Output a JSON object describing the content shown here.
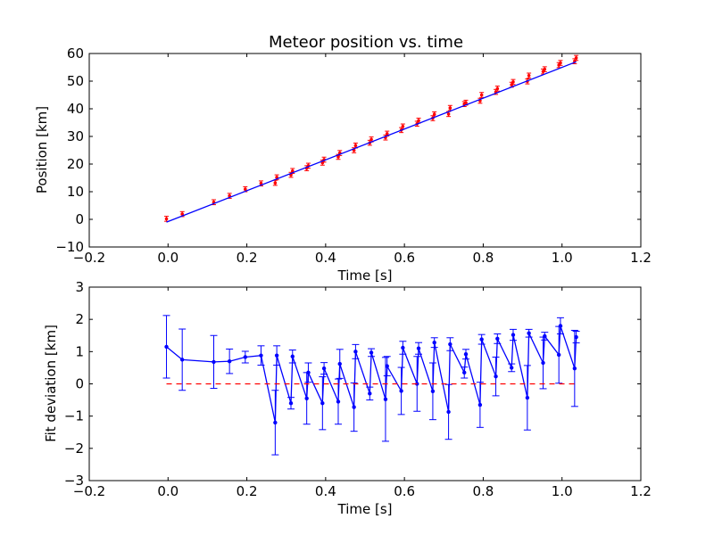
{
  "colors": {
    "measured": "#ff0000",
    "fit": "#0000ff",
    "deviation": "#0000ff",
    "zero_line": "#ff0000"
  },
  "chart_data": [
    {
      "type": "scatter",
      "title": "Meteor position vs. time",
      "xlabel": "Time [s]",
      "ylabel": "Position [km]",
      "xlim": [
        -0.2,
        1.2
      ],
      "ylim": [
        -10,
        60
      ],
      "xticks": [
        "−0.2",
        "0.0",
        "0.2",
        "0.4",
        "0.6",
        "0.8",
        "1.0",
        "1.2"
      ],
      "yticks": [
        "−10",
        "0",
        "10",
        "20",
        "30",
        "40",
        "50",
        "60"
      ],
      "series": [
        {
          "marker": "point-with-errorbar",
          "x": [
            -0.004,
            0.036,
            0.116,
            0.156,
            0.196,
            0.236,
            0.272,
            0.276,
            0.312,
            0.316,
            0.352,
            0.356,
            0.392,
            0.396,
            0.432,
            0.436,
            0.472,
            0.476,
            0.512,
            0.516,
            0.552,
            0.556,
            0.592,
            0.596,
            0.632,
            0.636,
            0.672,
            0.676,
            0.712,
            0.716,
            0.752,
            0.756,
            0.792,
            0.796,
            0.832,
            0.836,
            0.872,
            0.876,
            0.912,
            0.916,
            0.952,
            0.956,
            0.992,
            0.996,
            1.032,
            1.036
          ],
          "y": [
            0.2,
            1.9,
            6.2,
            8.5,
            10.9,
            13.0,
            13.2,
            15.2,
            16.1,
            17.5,
            18.5,
            19.4,
            20.5,
            21.6,
            22.6,
            24.0,
            25.0,
            26.7,
            27.7,
            28.9,
            29.6,
            31.0,
            32.3,
            33.6,
            34.6,
            35.7,
            36.6,
            38.0,
            38.1,
            40.3,
            41.7,
            42.2,
            42.9,
            45.0,
            46.1,
            47.3,
            48.7,
            49.7,
            49.9,
            52.0,
            53.5,
            54.3,
            55.8,
            56.6,
            57.2,
            58.4
          ],
          "yerr": 0.9
        },
        {
          "type": "line",
          "x": [
            -0.004,
            1.036
          ],
          "y": [
            -1.0,
            57.0
          ]
        }
      ]
    },
    {
      "type": "line",
      "xlabel": "Time [s]",
      "ylabel": "Fit deviation [km]",
      "xlim": [
        -0.2,
        1.2
      ],
      "ylim": [
        -3,
        3
      ],
      "xticks": [
        "−0.2",
        "0.0",
        "0.2",
        "0.4",
        "0.6",
        "0.8",
        "1.0",
        "1.2"
      ],
      "yticks": [
        "−3",
        "−2",
        "−1",
        "0",
        "1",
        "2",
        "3"
      ],
      "series": [
        {
          "marker": "point-with-errorbar",
          "x": [
            -0.004,
            0.036,
            0.116,
            0.156,
            0.196,
            0.236,
            0.272,
            0.276,
            0.312,
            0.316,
            0.352,
            0.356,
            0.392,
            0.396,
            0.432,
            0.436,
            0.472,
            0.476,
            0.512,
            0.516,
            0.552,
            0.556,
            0.592,
            0.596,
            0.632,
            0.636,
            0.672,
            0.676,
            0.712,
            0.716,
            0.752,
            0.756,
            0.792,
            0.796,
            0.832,
            0.836,
            0.872,
            0.876,
            0.912,
            0.916,
            0.952,
            0.956,
            0.992,
            0.996,
            1.032,
            1.036
          ],
          "y": [
            1.15,
            0.75,
            0.68,
            0.7,
            0.83,
            0.88,
            -1.2,
            0.88,
            -0.6,
            0.85,
            -0.45,
            0.35,
            -0.6,
            0.48,
            -0.55,
            0.62,
            -0.72,
            1.0,
            -0.3,
            0.97,
            -0.48,
            0.55,
            -0.22,
            1.12,
            0.0,
            1.1,
            -0.23,
            1.28,
            -0.87,
            1.23,
            0.35,
            0.92,
            -0.65,
            1.38,
            0.23,
            1.4,
            0.5,
            1.52,
            -0.43,
            1.57,
            0.65,
            1.48,
            0.9,
            1.8,
            0.48,
            1.45
          ],
          "yerr": [
            0.97,
            0.95,
            0.82,
            0.38,
            0.18,
            0.3,
            1.0,
            0.3,
            0.18,
            0.2,
            0.8,
            0.3,
            0.82,
            0.18,
            0.7,
            0.45,
            0.75,
            0.22,
            0.2,
            0.12,
            1.3,
            0.3,
            0.73,
            0.2,
            0.85,
            0.18,
            0.88,
            0.15,
            0.85,
            0.2,
            0.17,
            0.15,
            0.7,
            0.15,
            0.6,
            0.15,
            0.12,
            0.17,
            1.0,
            0.12,
            0.8,
            0.12,
            0.88,
            0.25,
            1.18,
            0.18
          ]
        },
        {
          "type": "line",
          "style": "dashed",
          "x": [
            -0.004,
            1.036
          ],
          "y": [
            0,
            0
          ]
        }
      ]
    }
  ]
}
